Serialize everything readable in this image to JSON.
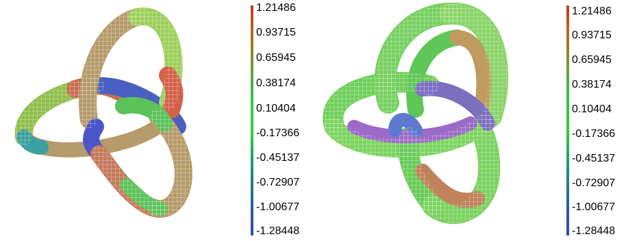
{
  "panels": [
    {
      "name": "left-knot",
      "colorbar": {
        "labels": [
          "1.21486",
          "0.93715",
          "0.65945",
          "0.38174",
          "0.10404",
          "-0.17366",
          "-0.45137",
          "-0.72907",
          "-1.00677",
          "-1.28448"
        ],
        "colors": [
          "#c0392b",
          "#b5651d",
          "#8c8c2a",
          "#4caf50",
          "#2ecc40",
          "#2ecc40",
          "#1f9e6e",
          "#217a8a",
          "#2c5aa0",
          "#3949ab"
        ]
      }
    },
    {
      "name": "right-knot",
      "colorbar": {
        "labels": [
          "1.21486",
          "0.93715",
          "0.65945",
          "0.38174",
          "0.10404",
          "-0.17366",
          "-0.45137",
          "-0.72907",
          "-1.00677",
          "-1.28448"
        ],
        "colors": [
          "#c0392b",
          "#b5651d",
          "#8c8c2a",
          "#4caf50",
          "#2ecc40",
          "#2ecc40",
          "#1f9e6e",
          "#217a8a",
          "#2c5aa0",
          "#3949ab"
        ]
      }
    }
  ]
}
